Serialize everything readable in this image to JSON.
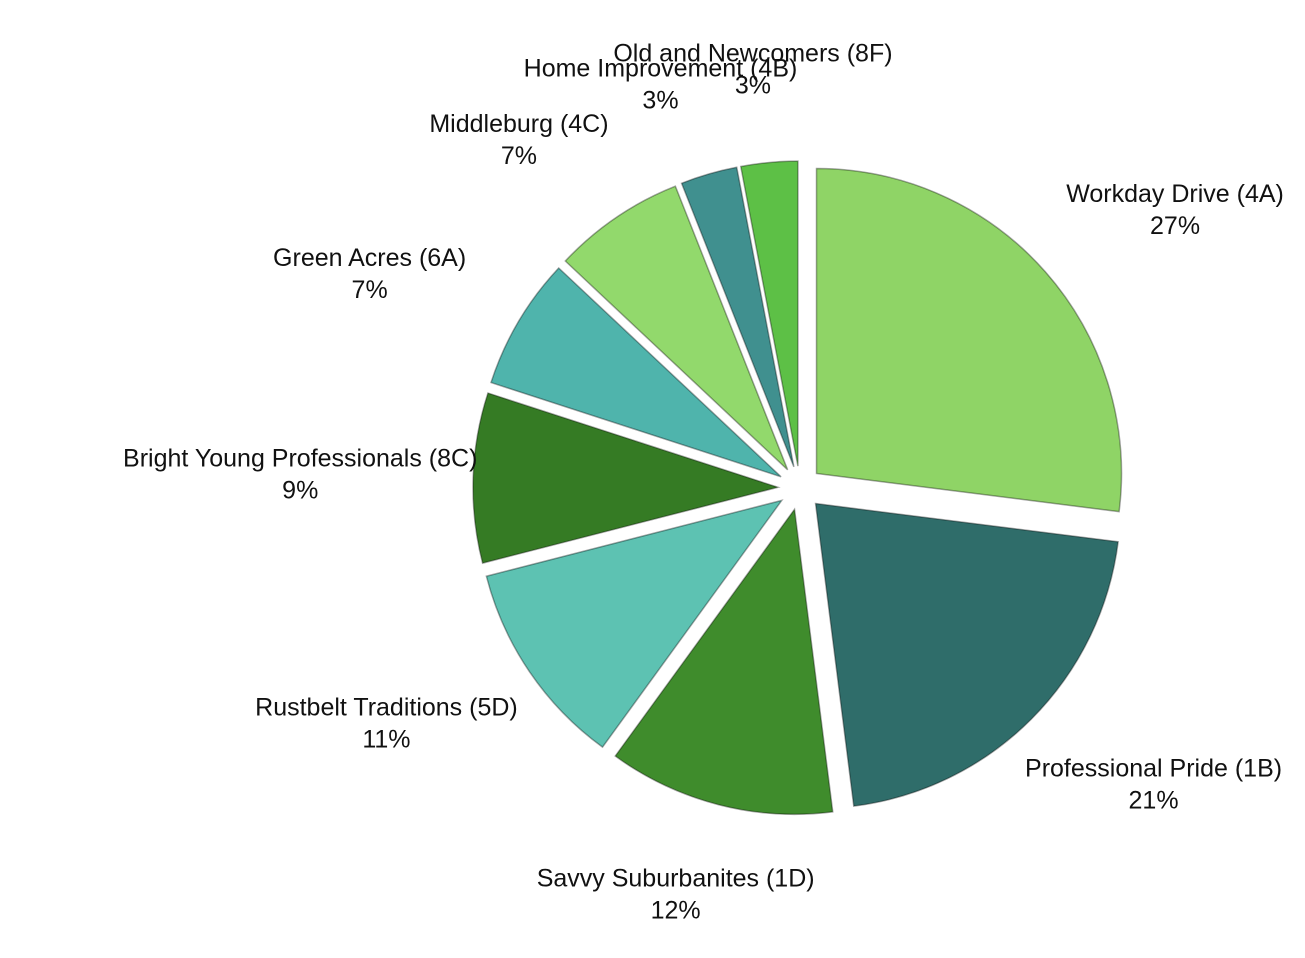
{
  "chart_data": {
    "type": "pie",
    "categories": [
      "Workday Drive (4A)",
      "Professional Pride (1B)",
      "Savvy Suburbanites (1D)",
      "Rustbelt Traditions (5D)",
      "Bright Young Professionals (8C)",
      "Green Acres (6A)",
      "Middleburg (4C)",
      "Home Improvement (4B)",
      "Old and Newcomers (8F)"
    ],
    "values": [
      27,
      21,
      12,
      11,
      9,
      7,
      7,
      3,
      3
    ],
    "value_labels": [
      "27%",
      "21%",
      "12%",
      "11%",
      "9%",
      "7%",
      "7%",
      "3%",
      "3%"
    ],
    "colors": [
      "#8fd466",
      "#2f6d6a",
      "#3f8c2c",
      "#5dc2b2",
      "#357b24",
      "#4fb4ac",
      "#92d96c",
      "#40908f",
      "#5dc046"
    ]
  }
}
